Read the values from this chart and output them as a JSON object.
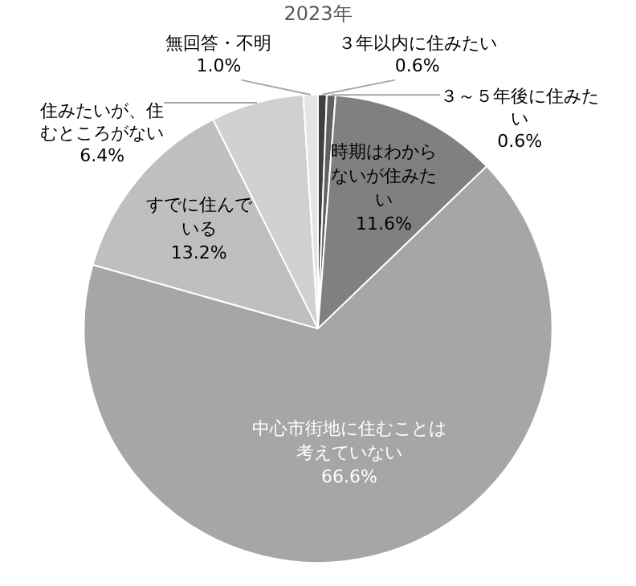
{
  "chart_data": {
    "type": "pie",
    "title": "2023年",
    "categories": [
      "３年以内に住みたい",
      "３～５年後に住みたい",
      "時期はわからないが住みたい",
      "中心市街地に住むことは考えていない",
      "すでに住んでいる",
      "住みたいが、住むところがない",
      "無回答・不明"
    ],
    "values": [
      0.6,
      0.6,
      11.6,
      66.6,
      13.2,
      6.4,
      1.0
    ],
    "value_labels": [
      "0.6%",
      "0.6%",
      "11.6%",
      "66.6%",
      "13.2%",
      "6.4%",
      "1.0%"
    ],
    "colors": [
      "#404040",
      "#606060",
      "#808080",
      "#a6a6a6",
      "#bfbfbf",
      "#d0d0d0",
      "#e4e4e4"
    ]
  }
}
